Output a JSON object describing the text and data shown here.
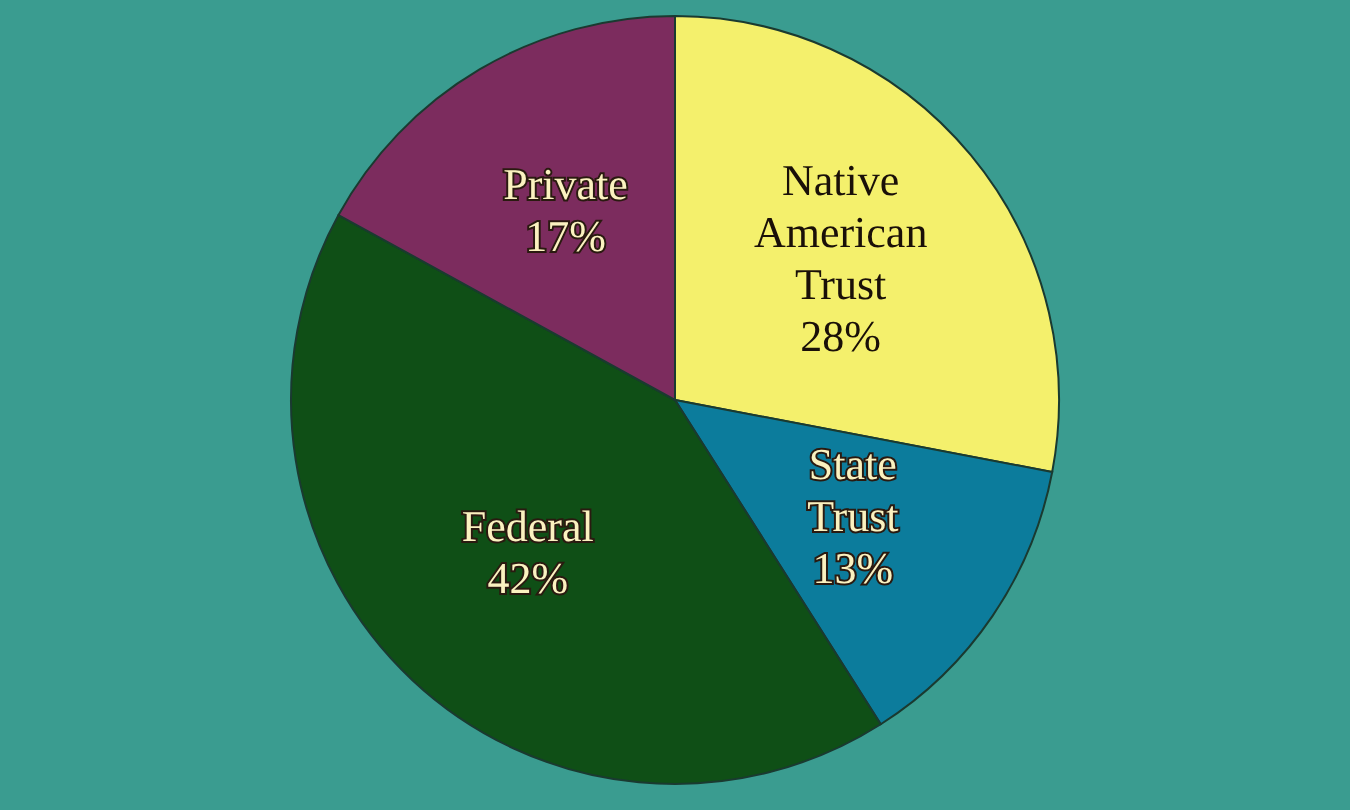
{
  "chart_data": {
    "type": "pie",
    "categories": [
      "Native American Trust",
      "State Trust",
      "Federal",
      "Private"
    ],
    "values": [
      28,
      13,
      42,
      17
    ],
    "value_labels": [
      "28%",
      "13%",
      "42%",
      "17%"
    ],
    "colors": [
      "#f4f06c",
      "#0c7c9c",
      "#0f4f16",
      "#7c2c5e"
    ]
  }
}
